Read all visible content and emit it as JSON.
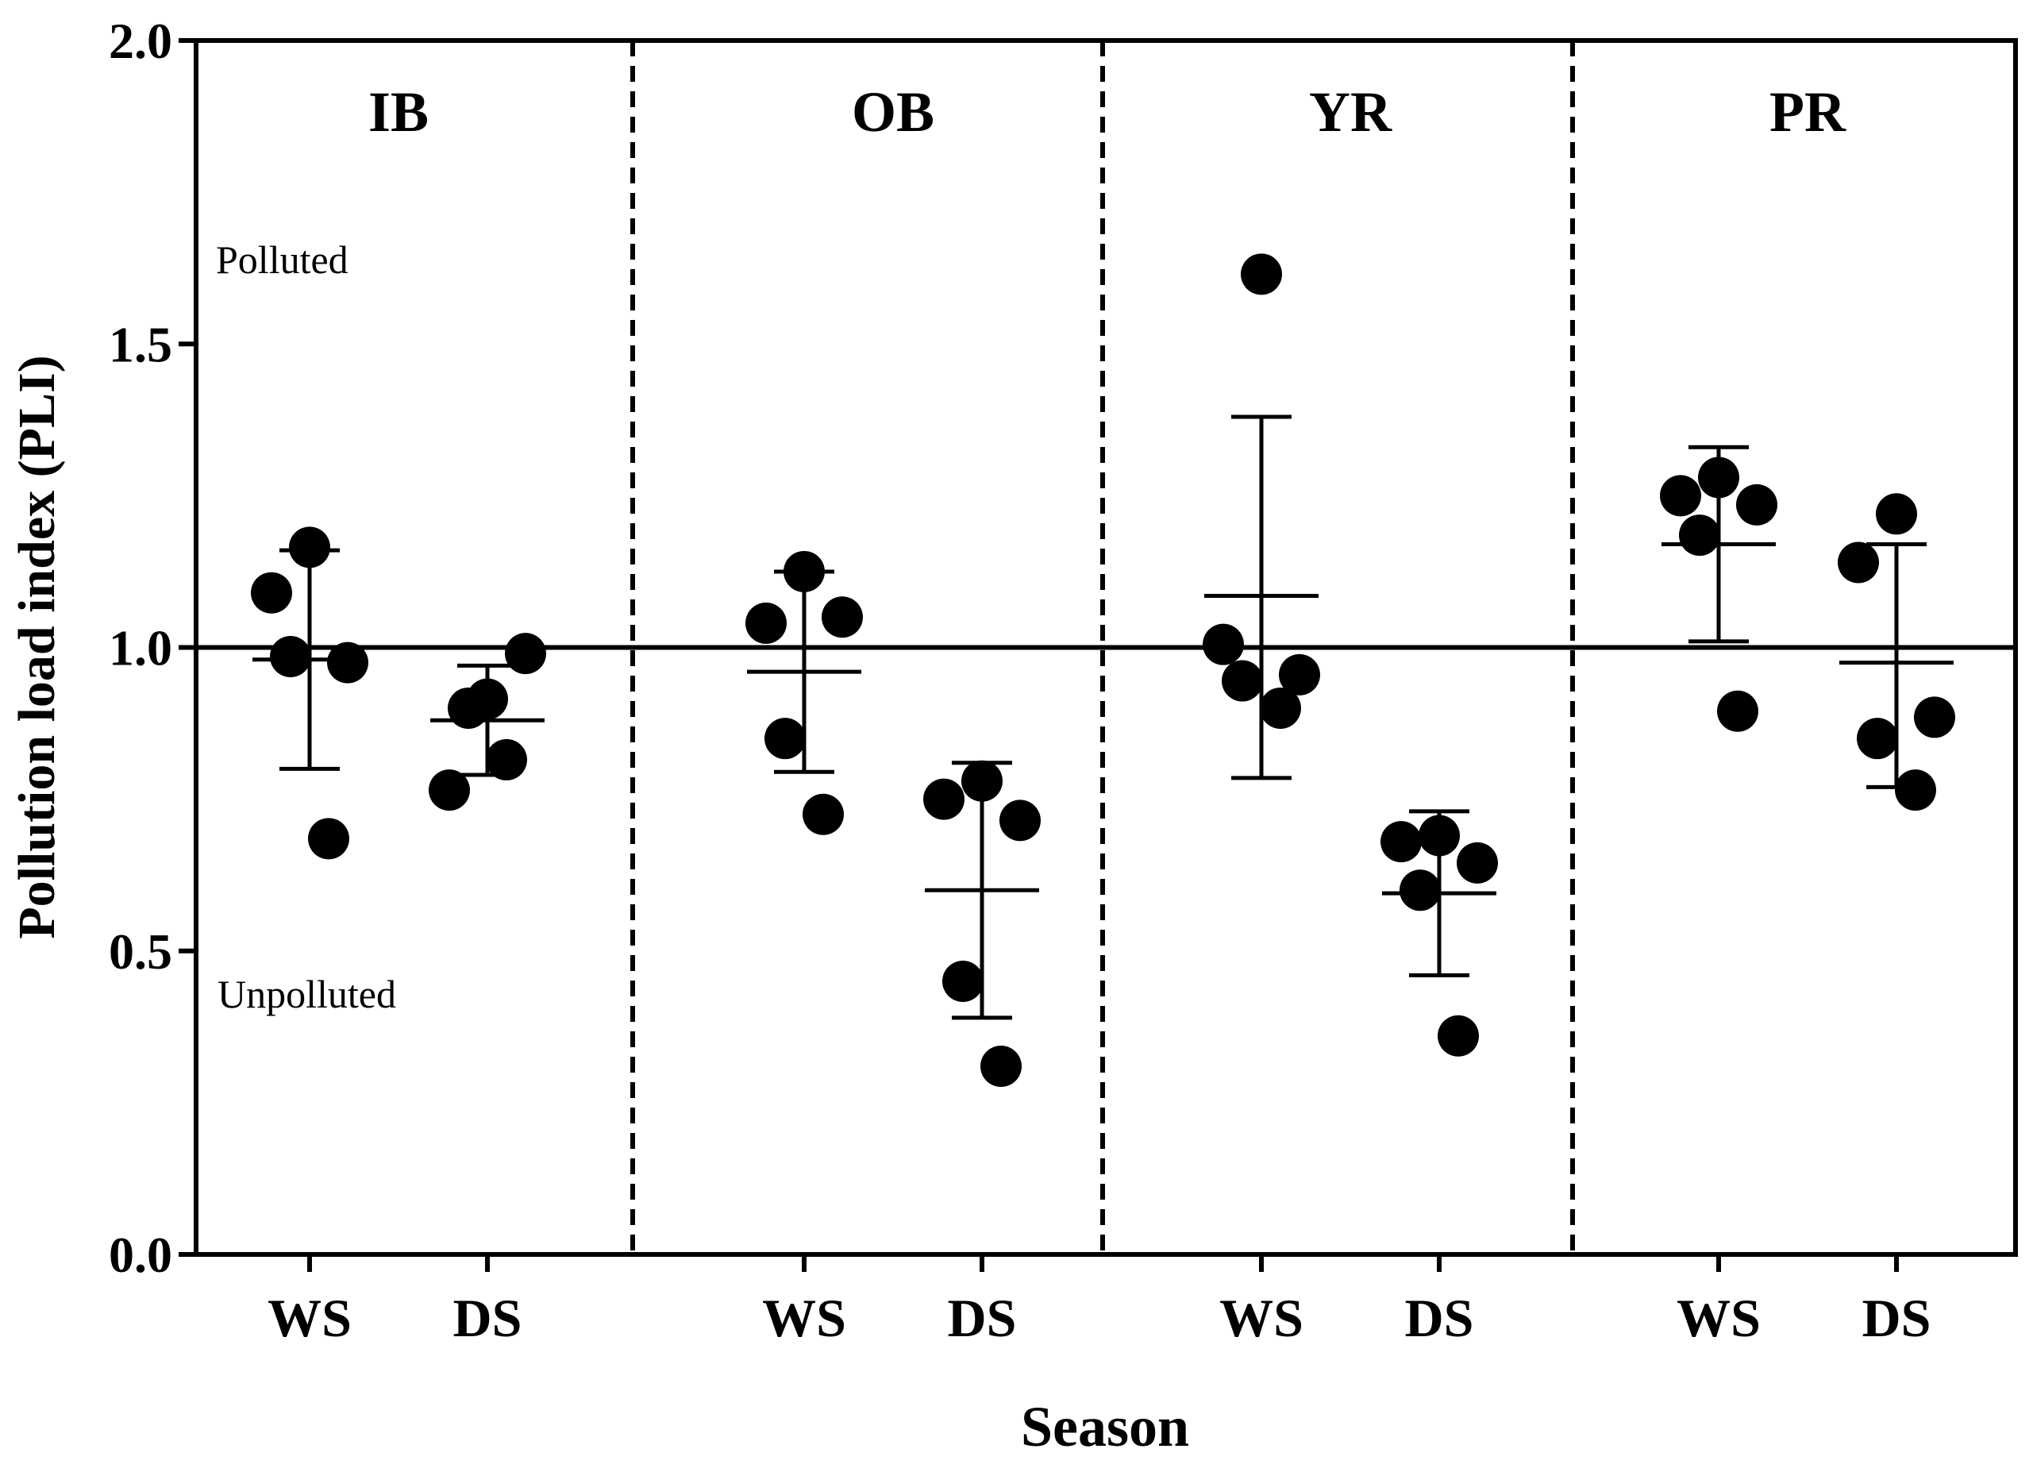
{
  "chart_data": {
    "type": "scatter",
    "title": "",
    "xlabel": "Season",
    "ylabel": "Pollution load index (PLI)",
    "ylim": [
      0,
      2.0
    ],
    "yticks": [
      "0.0",
      "0.5",
      "1.0",
      "1.5",
      "2.0"
    ],
    "ytick_values": [
      0,
      0.5,
      1.0,
      1.5,
      2.0
    ],
    "grid": false,
    "reference_line": 1.0,
    "annotations": {
      "above_line": "Polluted",
      "below_line": "Unpolluted"
    },
    "panels": [
      {
        "name": "IB",
        "groups": [
          {
            "label": "WS",
            "points": [
              1.165,
              1.09,
              0.975,
              0.985,
              0.685
            ],
            "mean": 0.98,
            "sd_low": 0.8,
            "sd_high": 1.16
          },
          {
            "label": "DS",
            "points": [
              0.915,
              0.765,
              0.99,
              0.9,
              0.815
            ],
            "mean": 0.88,
            "sd_low": 0.79,
            "sd_high": 0.97
          }
        ]
      },
      {
        "name": "OB",
        "groups": [
          {
            "label": "WS",
            "points": [
              1.125,
              1.04,
              1.05,
              0.85,
              0.725
            ],
            "mean": 0.96,
            "sd_low": 0.795,
            "sd_high": 1.125
          },
          {
            "label": "DS",
            "points": [
              0.78,
              0.75,
              0.715,
              0.45,
              0.31
            ],
            "mean": 0.6,
            "sd_low": 0.39,
            "sd_high": 0.81
          }
        ]
      },
      {
        "name": "YR",
        "groups": [
          {
            "label": "WS",
            "points": [
              1.615,
              1.005,
              0.955,
              0.945,
              0.9
            ],
            "mean": 1.085,
            "sd_low": 0.785,
            "sd_high": 1.38
          },
          {
            "label": "DS",
            "points": [
              0.69,
              0.68,
              0.645,
              0.6,
              0.36
            ],
            "mean": 0.595,
            "sd_low": 0.46,
            "sd_high": 0.73
          }
        ]
      },
      {
        "name": "PR",
        "groups": [
          {
            "label": "WS",
            "points": [
              1.28,
              1.25,
              1.235,
              1.185,
              0.895
            ],
            "mean": 1.17,
            "sd_low": 1.01,
            "sd_high": 1.33
          },
          {
            "label": "DS",
            "points": [
              1.22,
              1.14,
              0.885,
              0.85,
              0.765
            ],
            "mean": 0.975,
            "sd_low": 0.77,
            "sd_high": 1.17
          }
        ]
      }
    ]
  }
}
